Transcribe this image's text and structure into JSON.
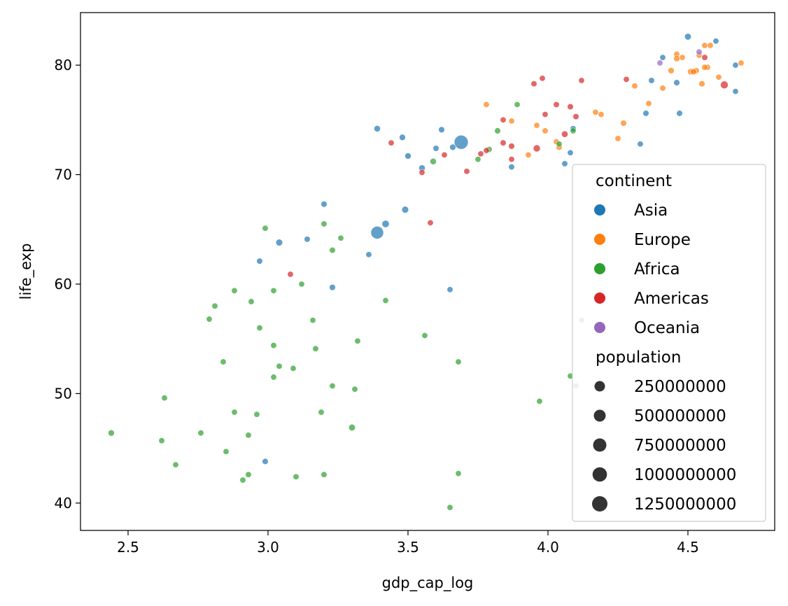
{
  "chart_data": {
    "type": "scatter",
    "title": "",
    "xlabel": "gdp_cap_log",
    "ylabel": "life_exp",
    "xlim": [
      2.33,
      4.81
    ],
    "ylim": [
      37.5,
      84.8
    ],
    "x_ticks": [
      2.5,
      3.0,
      3.5,
      4.0,
      4.5
    ],
    "x_tick_labels": [
      "2.5",
      "3.0",
      "3.5",
      "4.0",
      "4.5"
    ],
    "y_ticks": [
      40,
      50,
      60,
      70,
      80
    ],
    "y_tick_labels": [
      "40",
      "50",
      "60",
      "70",
      "80"
    ],
    "grid": false,
    "legend": {
      "placement": "lower-right",
      "hue_title": "continent",
      "size_title": "population",
      "size_labels": [
        "250000000",
        "500000000",
        "750000000",
        "1000000000",
        "1250000000"
      ],
      "size_values": [
        250000000,
        500000000,
        750000000,
        1000000000,
        1250000000
      ]
    },
    "series": [
      {
        "name": "Asia",
        "color": "#1f77b4",
        "points": [
          [
            4.5,
            82.6
          ],
          [
            4.6,
            82.2
          ],
          [
            4.41,
            80.7
          ],
          [
            4.67,
            80.0
          ],
          [
            4.37,
            78.6
          ],
          [
            4.46,
            78.4
          ],
          [
            4.67,
            77.6
          ],
          [
            4.47,
            75.6
          ],
          [
            4.35,
            75.6
          ],
          [
            4.33,
            72.8
          ],
          [
            3.39,
            74.2
          ],
          [
            3.62,
            74.1
          ],
          [
            3.48,
            73.4
          ],
          [
            3.69,
            72.96
          ],
          [
            3.6,
            72.4
          ],
          [
            3.66,
            72.5
          ],
          [
            3.5,
            71.7
          ],
          [
            3.55,
            70.6
          ],
          [
            3.87,
            70.7
          ],
          [
            4.09,
            74.2
          ],
          [
            4.08,
            72.0
          ],
          [
            4.06,
            71.0
          ],
          [
            3.49,
            66.8
          ],
          [
            3.2,
            67.3
          ],
          [
            3.39,
            64.7
          ],
          [
            3.42,
            65.5
          ],
          [
            3.14,
            64.1
          ],
          [
            3.04,
            63.8
          ],
          [
            2.97,
            62.1
          ],
          [
            3.36,
            62.7
          ],
          [
            3.23,
            59.7
          ],
          [
            3.65,
            59.5
          ],
          [
            2.99,
            43.8
          ]
        ],
        "population": [
          127000000,
          4500000,
          7000000,
          4000000,
          23000000,
          49000000,
          600000,
          27000000,
          24000000,
          4100000,
          85000000,
          44000000,
          69000000,
          1318000000,
          29000000,
          65000000,
          80000000,
          89000000,
          24000000,
          20000000,
          2500000,
          20000000,
          150000000,
          47000000,
          1110000000,
          223000000,
          19000000,
          150000000,
          28000000,
          6200000,
          47000000,
          2900000,
          31000000
        ]
      },
      {
        "name": "Europe",
        "color": "#ff7f0e",
        "points": [
          [
            4.54,
            80.9
          ],
          [
            4.46,
            81.0
          ],
          [
            4.56,
            81.8
          ],
          [
            4.58,
            81.8
          ],
          [
            4.48,
            80.7
          ],
          [
            4.46,
            80.6
          ],
          [
            4.69,
            80.2
          ],
          [
            4.51,
            79.4
          ],
          [
            4.44,
            79.5
          ],
          [
            4.53,
            79.5
          ],
          [
            4.57,
            79.8
          ],
          [
            4.56,
            79.8
          ],
          [
            4.52,
            79.4
          ],
          [
            4.61,
            78.9
          ],
          [
            4.41,
            77.9
          ],
          [
            4.55,
            78.3
          ],
          [
            4.31,
            78.1
          ],
          [
            4.36,
            76.5
          ],
          [
            3.78,
            76.4
          ],
          [
            3.87,
            74.9
          ],
          [
            4.17,
            75.7
          ],
          [
            4.19,
            75.5
          ],
          [
            3.96,
            74.5
          ],
          [
            3.99,
            74.0
          ],
          [
            4.27,
            74.7
          ],
          [
            4.25,
            73.3
          ],
          [
            3.93,
            71.8
          ],
          [
            4.03,
            73.0
          ],
          [
            4.04,
            72.5
          ],
          [
            4.26,
            69.8
          ]
        ],
        "population": [
          8200000,
          10400000,
          7500000,
          4600000,
          5400000,
          61000000,
          300000,
          82000000,
          60000000,
          16500000,
          4100000,
          9000000,
          58000000,
          300000,
          10700000,
          40000000,
          10200000,
          10200000,
          3600000,
          4500000,
          2000000,
          5400000,
          4400000,
          10200000,
          38500000,
          10100000,
          7300000,
          9900000,
          22300000,
          3600000
        ]
      },
      {
        "name": "Africa",
        "color": "#2ca02c",
        "points": [
          [
            3.89,
            76.4
          ],
          [
            3.82,
            74.0
          ],
          [
            3.79,
            72.3
          ],
          [
            3.75,
            71.4
          ],
          [
            3.59,
            71.2
          ],
          [
            4.09,
            74.0
          ],
          [
            4.04,
            72.8
          ],
          [
            2.99,
            65.1
          ],
          [
            3.2,
            65.5
          ],
          [
            3.26,
            64.2
          ],
          [
            3.23,
            63.1
          ],
          [
            3.12,
            60.0
          ],
          [
            2.88,
            59.4
          ],
          [
            3.02,
            59.4
          ],
          [
            2.81,
            58.0
          ],
          [
            2.94,
            58.4
          ],
          [
            3.42,
            58.5
          ],
          [
            2.79,
            56.8
          ],
          [
            2.97,
            56.0
          ],
          [
            3.16,
            56.7
          ],
          [
            3.56,
            55.3
          ],
          [
            3.17,
            54.1
          ],
          [
            3.02,
            54.4
          ],
          [
            3.32,
            54.8
          ],
          [
            2.84,
            52.9
          ],
          [
            3.68,
            52.9
          ],
          [
            3.04,
            52.5
          ],
          [
            3.09,
            52.3
          ],
          [
            3.02,
            51.5
          ],
          [
            3.23,
            50.7
          ],
          [
            3.31,
            50.4
          ],
          [
            4.08,
            51.6
          ],
          [
            4.1,
            50.7
          ],
          [
            4.12,
            56.7
          ],
          [
            2.63,
            49.6
          ],
          [
            3.97,
            49.3
          ],
          [
            2.88,
            48.3
          ],
          [
            2.96,
            48.1
          ],
          [
            3.19,
            48.3
          ],
          [
            2.93,
            46.2
          ],
          [
            2.76,
            46.4
          ],
          [
            3.3,
            46.9
          ],
          [
            2.44,
            46.4
          ],
          [
            2.62,
            45.7
          ],
          [
            2.85,
            44.7
          ],
          [
            2.67,
            43.5
          ],
          [
            2.91,
            42.1
          ],
          [
            2.93,
            42.6
          ],
          [
            3.1,
            42.4
          ],
          [
            3.2,
            42.6
          ],
          [
            3.68,
            42.7
          ],
          [
            3.65,
            39.6
          ]
        ],
        "population": [
          1250000,
          33000000,
          10300000,
          6000000,
          80000000,
          800000,
          1900000,
          9000000,
          4900000,
          4000000,
          22900000,
          3000000,
          12000000,
          10300000,
          8400000,
          12900000,
          1400000,
          2000000,
          12000000,
          3100000,
          2000000,
          22800000,
          18000000,
          10300000,
          8900000,
          2000000,
          4400000,
          1100000,
          1500000,
          3500000,
          8500000,
          200000,
          600000,
          1100000,
          1500000,
          1900000,
          14300000,
          11900000,
          15900000,
          9500000,
          12000000,
          135000000,
          64600000,
          8400000,
          6100000,
          5000000,
          13300000,
          17700000,
          12300000,
          13300000,
          1600000,
          12300000
        ]
      },
      {
        "name": "Americas",
        "color": "#d62728",
        "points": [
          [
            4.63,
            78.2
          ],
          [
            4.56,
            80.7
          ],
          [
            4.12,
            78.6
          ],
          [
            3.98,
            78.8
          ],
          [
            3.95,
            78.3
          ],
          [
            4.28,
            78.7
          ],
          [
            4.03,
            76.4
          ],
          [
            4.08,
            76.2
          ],
          [
            3.99,
            75.5
          ],
          [
            4.1,
            75.3
          ],
          [
            3.96,
            72.4
          ],
          [
            4.06,
            73.7
          ],
          [
            3.84,
            75.0
          ],
          [
            3.84,
            72.9
          ],
          [
            3.87,
            72.6
          ],
          [
            3.87,
            71.4
          ],
          [
            3.76,
            71.9
          ],
          [
            3.78,
            72.2
          ],
          [
            3.71,
            70.3
          ],
          [
            3.63,
            71.8
          ],
          [
            3.44,
            72.9
          ],
          [
            3.55,
            70.2
          ],
          [
            3.58,
            65.6
          ],
          [
            3.08,
            60.9
          ]
        ],
        "population": [
          301000000,
          33000000,
          3400000,
          4100000,
          11400000,
          4000000,
          16300000,
          40300000,
          3400000,
          26100000,
          190000000,
          108700000,
          6700000,
          28700000,
          44200000,
          9300000,
          3200000,
          9300000,
          12600000,
          5200000,
          6900000,
          7500000,
          2600000,
          8500000
        ]
      },
      {
        "name": "Oceania",
        "color": "#9467bd",
        "points": [
          [
            4.54,
            81.2
          ],
          [
            4.4,
            80.2
          ]
        ],
        "population": [
          20400000,
          4100000
        ]
      }
    ]
  }
}
